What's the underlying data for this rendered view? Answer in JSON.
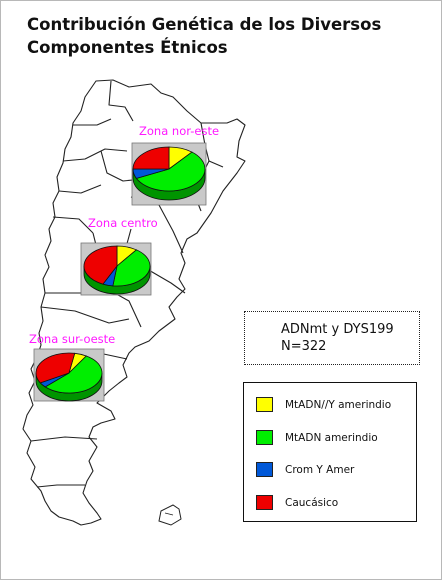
{
  "title": {
    "line1": "Contribución Genética de los Diversos",
    "line2": "Componentes Étnicos"
  },
  "info": {
    "line1": "ADNmt y DYS199",
    "line2": "N=322"
  },
  "legend": [
    {
      "label": "MtADN//Y amerindio",
      "color": "#ffff00"
    },
    {
      "label": "MtADN amerindio",
      "color": "#00ee00"
    },
    {
      "label": "Crom Y Amer",
      "color": "#0058d8"
    },
    {
      "label": "Caucásico",
      "color": "#ee0000"
    }
  ],
  "chart_data": {
    "type": "pie",
    "series_names": [
      "MtADN//Y amerindio",
      "MtADN amerindio",
      "Crom Y Amer",
      "Caucásico"
    ],
    "colors": [
      "#ffff00",
      "#00ee00",
      "#0058d8",
      "#ee0000"
    ],
    "pies": [
      {
        "zone": "Zona nor-este",
        "values": [
          11,
          57,
          7,
          25
        ]
      },
      {
        "zone": "Zona centro",
        "values": [
          10,
          42,
          5,
          43
        ]
      },
      {
        "zone": "Zona sur-oeste",
        "values": [
          6,
          54,
          4,
          36
        ]
      }
    ]
  }
}
